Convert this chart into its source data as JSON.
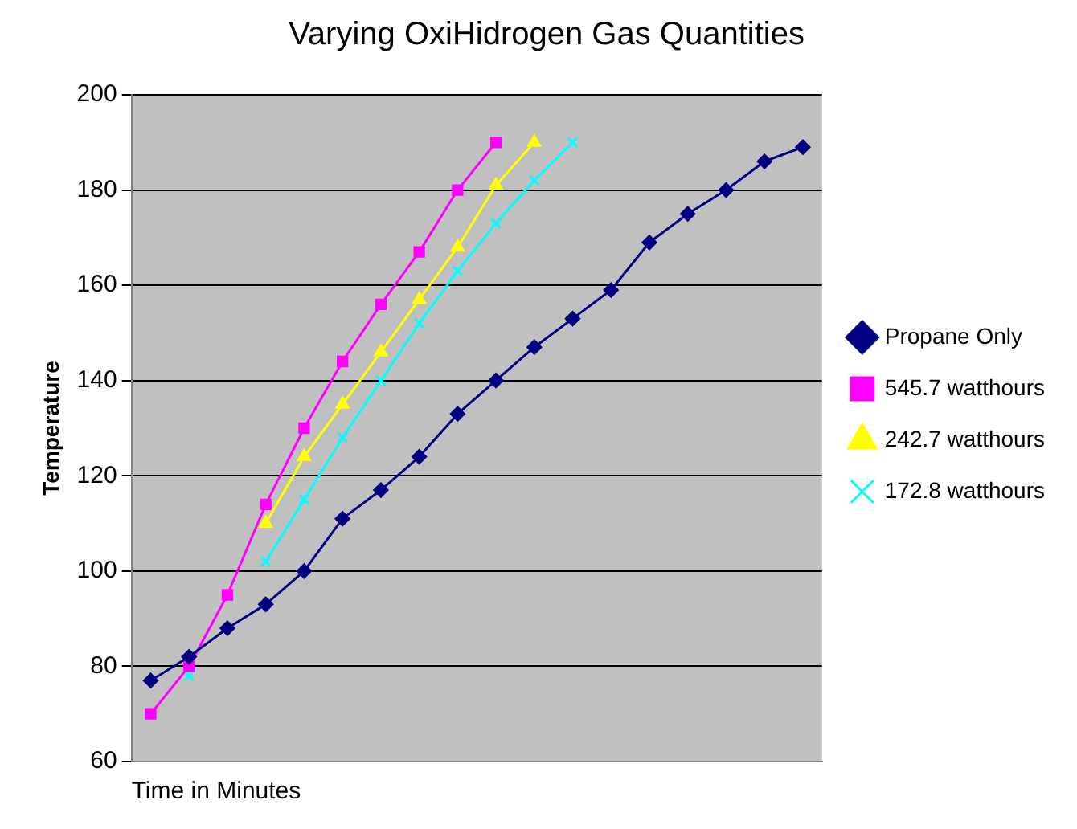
{
  "chart_data": {
    "type": "line",
    "title": "Varying OxiHidrogen Gas Quantities",
    "xlabel": "Time in Minutes",
    "ylabel": "Temperature",
    "categories": [
      null,
      null,
      null,
      null,
      null,
      null,
      null,
      null,
      null,
      null,
      null,
      null,
      null,
      null,
      null,
      null,
      null,
      null
    ],
    "series": [
      {
        "name": "Propane Only",
        "color": "#000080",
        "marker": "diamond",
        "values": [
          77,
          82,
          88,
          93,
          100,
          111,
          117,
          124,
          133,
          140,
          147,
          153,
          159,
          169,
          175,
          180,
          186,
          189
        ]
      },
      {
        "name": "545.7 watthours",
        "color": "#ff00ff",
        "marker": "square",
        "values": [
          70,
          80,
          95,
          114,
          130,
          144,
          156,
          167,
          180,
          190,
          null,
          null,
          null,
          null,
          null,
          null,
          null,
          null
        ]
      },
      {
        "name": "242.7 watthours",
        "color": "#ffff00",
        "marker": "triangle",
        "values": [
          null,
          null,
          null,
          110,
          124,
          135,
          146,
          157,
          168,
          181,
          190,
          null,
          null,
          null,
          null,
          null,
          null,
          null
        ]
      },
      {
        "name": "172.8 watthours",
        "color": "#00ffff",
        "marker": "cross",
        "values": [
          null,
          78,
          null,
          102,
          115,
          128,
          140,
          152,
          163,
          173,
          182,
          190,
          null,
          null,
          null,
          null,
          null,
          null
        ]
      }
    ],
    "ylim": [
      60,
      200
    ],
    "yticks": [
      60,
      80,
      100,
      120,
      140,
      160,
      180,
      200
    ],
    "grid": "y",
    "legend": "right",
    "tick_labels": "y"
  }
}
